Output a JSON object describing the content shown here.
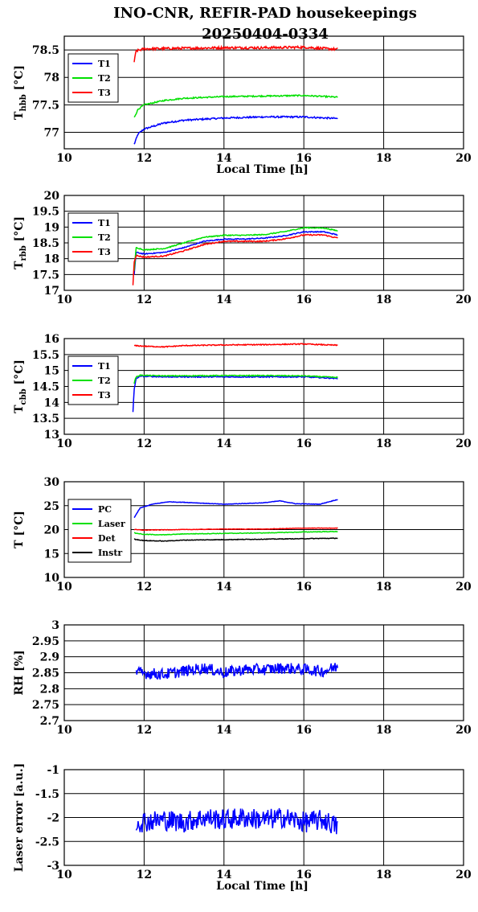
{
  "title_line1": "INO-CNR, REFIR-PAD housekeepings",
  "title_line2": "20250404-0334",
  "colors": {
    "blue": "#0000ff",
    "green": "#00e000",
    "red": "#ff0000",
    "black": "#000000"
  },
  "chart_data": [
    {
      "type": "line",
      "ylabel_main": "T",
      "ylabel_sub": "hbb",
      "ylabel_unit": " [°C]",
      "xlabel": "Local Time [h]",
      "xlim": [
        10,
        20
      ],
      "xticks": [
        10,
        12,
        14,
        16,
        18,
        20
      ],
      "ylim": [
        76.7,
        78.75
      ],
      "yticks": [
        77,
        77.5,
        78,
        78.5
      ],
      "ytick_labels": [
        "77",
        "77.5",
        "78",
        "78.5"
      ],
      "series": [
        {
          "name": "T1",
          "color": "#0000ff",
          "noise": 0.015,
          "x": [
            11.75,
            11.85,
            12.0,
            12.5,
            13.0,
            14.0,
            15.0,
            16.0,
            16.85
          ],
          "y": [
            76.78,
            76.97,
            77.06,
            77.17,
            77.22,
            77.26,
            77.28,
            77.28,
            77.25
          ]
        },
        {
          "name": "T2",
          "color": "#00e000",
          "noise": 0.012,
          "x": [
            11.75,
            11.85,
            12.0,
            12.5,
            13.0,
            14.0,
            15.0,
            16.0,
            16.85
          ],
          "y": [
            77.27,
            77.42,
            77.5,
            77.58,
            77.62,
            77.65,
            77.66,
            77.67,
            77.64
          ]
        },
        {
          "name": "T3",
          "color": "#ff0000",
          "noise": 0.022,
          "x": [
            11.75,
            11.8,
            12.0,
            13.0,
            14.0,
            15.0,
            16.0,
            16.85
          ],
          "y": [
            78.28,
            78.48,
            78.52,
            78.53,
            78.54,
            78.54,
            78.55,
            78.51
          ]
        }
      ]
    },
    {
      "type": "line",
      "ylabel_main": "T",
      "ylabel_sub": "rbb",
      "ylabel_unit": " [°C]",
      "xlabel": "",
      "xlim": [
        10,
        20
      ],
      "xticks": [
        10,
        12,
        14,
        16,
        18,
        20
      ],
      "ylim": [
        17,
        20
      ],
      "yticks": [
        17,
        17.5,
        18,
        18.5,
        19,
        19.5,
        20
      ],
      "ytick_labels": [
        "17",
        "17.5",
        "18",
        "18.5",
        "19",
        "19.5",
        "20"
      ],
      "series": [
        {
          "name": "T1",
          "color": "#0000ff",
          "noise": 0.015,
          "x": [
            11.75,
            11.8,
            12.0,
            12.5,
            13.0,
            13.5,
            14.0,
            14.5,
            15.0,
            15.5,
            16.0,
            16.5,
            16.85
          ],
          "y": [
            17.5,
            18.2,
            18.15,
            18.2,
            18.35,
            18.55,
            18.62,
            18.62,
            18.65,
            18.72,
            18.85,
            18.85,
            18.75
          ]
        },
        {
          "name": "T2",
          "color": "#00e000",
          "noise": 0.015,
          "x": [
            11.75,
            11.8,
            12.0,
            12.5,
            13.0,
            13.5,
            14.0,
            14.5,
            15.0,
            15.5,
            16.0,
            16.5,
            16.85
          ],
          "y": [
            17.6,
            18.35,
            18.28,
            18.32,
            18.5,
            18.68,
            18.74,
            18.74,
            18.76,
            18.85,
            18.98,
            18.97,
            18.88
          ]
        },
        {
          "name": "T3",
          "color": "#ff0000",
          "noise": 0.018,
          "x": [
            11.72,
            11.75,
            11.8,
            12.0,
            12.5,
            13.0,
            13.5,
            14.0,
            14.5,
            15.0,
            15.5,
            16.0,
            16.5,
            16.85
          ],
          "y": [
            17.15,
            17.9,
            18.1,
            18.05,
            18.08,
            18.25,
            18.45,
            18.55,
            18.55,
            18.55,
            18.62,
            18.75,
            18.75,
            18.65
          ]
        }
      ]
    },
    {
      "type": "line",
      "ylabel_main": "T",
      "ylabel_sub": "cbb",
      "ylabel_unit": " [°C]",
      "xlabel": "",
      "xlim": [
        10,
        20
      ],
      "xticks": [
        10,
        12,
        14,
        16,
        18,
        20
      ],
      "ylim": [
        13,
        16
      ],
      "yticks": [
        13,
        13.5,
        14,
        14.5,
        15,
        15.5,
        16
      ],
      "ytick_labels": [
        "13",
        "13.5",
        "14",
        "14.5",
        "15",
        "15.5",
        "16"
      ],
      "series": [
        {
          "name": "T1",
          "color": "#0000ff",
          "noise": 0.015,
          "x": [
            11.72,
            11.75,
            11.8,
            11.9,
            12.5,
            14.0,
            15.0,
            16.0,
            16.85
          ],
          "y": [
            13.7,
            14.4,
            14.75,
            14.82,
            14.8,
            14.8,
            14.8,
            14.8,
            14.75
          ]
        },
        {
          "name": "T2",
          "color": "#00e000",
          "noise": 0.015,
          "x": [
            11.75,
            11.8,
            11.9,
            12.5,
            14.0,
            15.0,
            16.0,
            16.85
          ],
          "y": [
            14.6,
            14.8,
            14.85,
            14.83,
            14.84,
            14.84,
            14.83,
            14.78
          ]
        },
        {
          "name": "T3",
          "color": "#ff0000",
          "noise": 0.015,
          "x": [
            11.75,
            12.0,
            12.5,
            13.0,
            14.0,
            15.0,
            16.0,
            16.85
          ],
          "y": [
            15.78,
            15.76,
            15.74,
            15.78,
            15.8,
            15.81,
            15.83,
            15.79
          ]
        }
      ]
    },
    {
      "type": "line",
      "ylabel_main": "T",
      "ylabel_sub": "",
      "ylabel_unit": " [°C]",
      "xlabel": "",
      "xlim": [
        10,
        20
      ],
      "xticks": [
        10,
        12,
        14,
        16,
        18,
        20
      ],
      "ylim": [
        10,
        30
      ],
      "yticks": [
        10,
        15,
        20,
        25,
        30
      ],
      "ytick_labels": [
        "10",
        "15",
        "20",
        "25",
        "30"
      ],
      "series": [
        {
          "name": "PC",
          "color": "#0000ff",
          "noise": 0.05,
          "x": [
            11.75,
            11.9,
            12.2,
            12.6,
            13.0,
            14.0,
            15.0,
            15.4,
            15.8,
            16.4,
            16.85
          ],
          "y": [
            22.5,
            24.5,
            25.3,
            25.8,
            25.7,
            25.3,
            25.6,
            26.0,
            25.4,
            25.3,
            26.3
          ]
        },
        {
          "name": "Laser",
          "color": "#00e000",
          "noise": 0.06,
          "x": [
            11.75,
            12.0,
            12.5,
            13.0,
            14.0,
            15.0,
            16.0,
            16.85
          ],
          "y": [
            19.3,
            19.0,
            18.9,
            19.1,
            19.2,
            19.3,
            19.5,
            19.6
          ]
        },
        {
          "name": "Det",
          "color": "#ff0000",
          "noise": 0.05,
          "x": [
            11.75,
            12.0,
            13.0,
            14.0,
            15.0,
            16.0,
            16.85
          ],
          "y": [
            20.0,
            19.9,
            20.0,
            20.1,
            20.1,
            20.3,
            20.3
          ]
        },
        {
          "name": "Instr",
          "color": "#000000",
          "noise": 0.06,
          "x": [
            11.75,
            12.0,
            12.5,
            13.0,
            14.0,
            15.0,
            16.0,
            16.85
          ],
          "y": [
            18.0,
            17.7,
            17.6,
            17.8,
            17.9,
            18.0,
            18.1,
            18.2
          ]
        }
      ]
    },
    {
      "type": "line",
      "ylabel_main": "RH [%]",
      "ylabel_sub": "",
      "ylabel_unit": "",
      "xlabel": "",
      "xlim": [
        10,
        20
      ],
      "xticks": [
        10,
        12,
        14,
        16,
        18,
        20
      ],
      "ylim": [
        2.7,
        3
      ],
      "yticks": [
        2.7,
        2.75,
        2.8,
        2.85,
        2.9,
        2.95,
        3
      ],
      "ytick_labels": [
        "2.7",
        "2.75",
        "2.8",
        "2.85",
        "2.9",
        "2.95",
        "3"
      ],
      "series": [
        {
          "name": "",
          "color": "#0000ff",
          "noise": 0.018,
          "x": [
            11.8,
            12.5,
            13.0,
            13.5,
            14.0,
            14.5,
            15.0,
            15.5,
            16.0,
            16.5,
            16.85
          ],
          "y": [
            2.85,
            2.845,
            2.855,
            2.865,
            2.85,
            2.86,
            2.86,
            2.865,
            2.86,
            2.855,
            2.87
          ]
        }
      ]
    },
    {
      "type": "line",
      "ylabel_main": "Laser error [a.u.]",
      "ylabel_sub": "",
      "ylabel_unit": "",
      "xlabel": "Local Time [h]",
      "xlim": [
        10,
        20
      ],
      "xticks": [
        10,
        12,
        14,
        16,
        18,
        20
      ],
      "ylim": [
        -3,
        -1
      ],
      "yticks": [
        -3,
        -2.5,
        -2,
        -1.5,
        -1
      ],
      "ytick_labels": [
        "-3",
        "-2.5",
        "-2",
        "-1.5",
        "-1"
      ],
      "series": [
        {
          "name": "",
          "color": "#0000ff",
          "noise": 0.22,
          "x": [
            11.8,
            12.5,
            13.0,
            13.5,
            14.0,
            14.5,
            15.0,
            15.5,
            16.0,
            16.5,
            16.85
          ],
          "y": [
            -2.1,
            -2.05,
            -2.1,
            -2.0,
            -2.05,
            -2.0,
            -2.05,
            -2.0,
            -2.1,
            -2.05,
            -2.2
          ]
        }
      ]
    }
  ]
}
